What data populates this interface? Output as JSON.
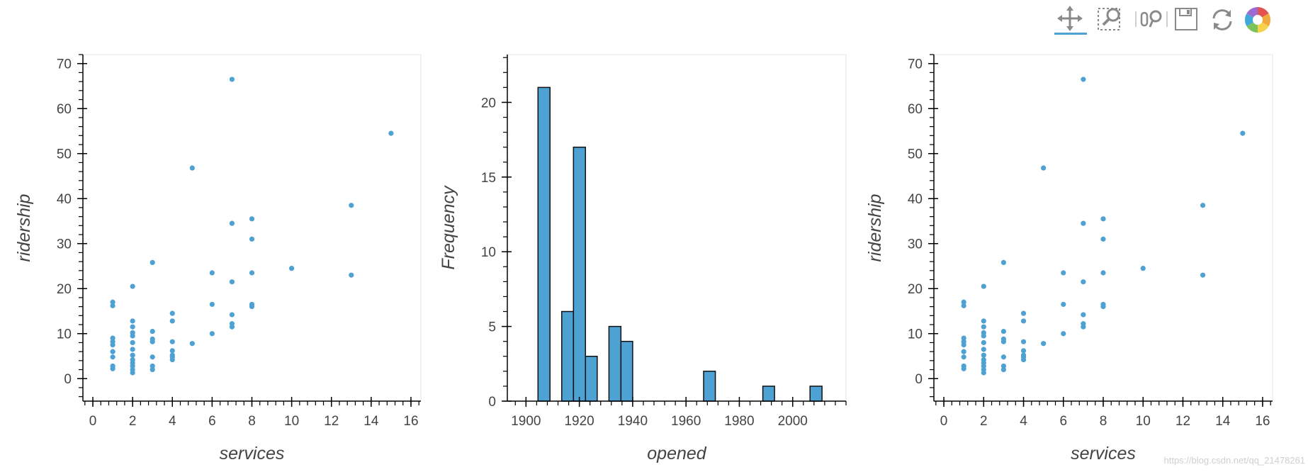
{
  "toolbar": {
    "tools": [
      {
        "name": "pan-tool",
        "icon": "move-icon",
        "active": true
      },
      {
        "name": "box-zoom-tool",
        "icon": "box-zoom-icon",
        "active": false
      },
      {
        "name": "wheel-zoom-tool",
        "icon": "wheel-zoom-icon",
        "active": false
      },
      {
        "name": "save-tool",
        "icon": "save-icon",
        "active": false
      },
      {
        "name": "reset-tool",
        "icon": "reset-icon",
        "active": false
      },
      {
        "name": "bokeh-logo",
        "icon": "bokeh-logo-icon",
        "active": false
      }
    ],
    "active_color": "#4ea1d3"
  },
  "watermark": "https://blog.csdn.net/qq_21478261",
  "chart_data": [
    {
      "type": "scatter",
      "title": "",
      "xlabel": "services",
      "ylabel": "ridership",
      "xlim": [
        -0.5,
        16.5
      ],
      "ylim": [
        -5,
        72
      ],
      "xticks": [
        0,
        2,
        4,
        6,
        8,
        10,
        12,
        14,
        16
      ],
      "yticks": [
        0,
        10,
        20,
        30,
        40,
        50,
        60,
        70
      ],
      "color": "#4ea1d3",
      "points": [
        [
          1,
          17
        ],
        [
          1,
          16.2
        ],
        [
          1,
          9
        ],
        [
          1,
          8.2
        ],
        [
          1,
          7.5
        ],
        [
          1,
          6
        ],
        [
          1,
          4.8
        ],
        [
          1,
          2.8
        ],
        [
          1,
          2.2
        ],
        [
          2,
          20.5
        ],
        [
          2,
          12.8
        ],
        [
          2,
          11.5
        ],
        [
          2,
          10.2
        ],
        [
          2,
          9.5
        ],
        [
          2,
          8
        ],
        [
          2,
          6.5
        ],
        [
          2,
          5.2
        ],
        [
          2,
          4.2
        ],
        [
          2,
          3.5
        ],
        [
          2,
          2.8
        ],
        [
          2,
          2
        ],
        [
          2,
          1.3
        ],
        [
          3,
          25.8
        ],
        [
          3,
          10.5
        ],
        [
          3,
          8.8
        ],
        [
          3,
          8.2
        ],
        [
          3,
          4.8
        ],
        [
          3,
          2.8
        ],
        [
          3,
          2
        ],
        [
          4,
          14.5
        ],
        [
          4,
          12.8
        ],
        [
          4,
          8.2
        ],
        [
          4,
          6.2
        ],
        [
          4,
          5.2
        ],
        [
          4,
          4.8
        ],
        [
          4,
          4.2
        ],
        [
          5,
          46.8
        ],
        [
          5,
          7.8
        ],
        [
          6,
          23.5
        ],
        [
          6,
          16.5
        ],
        [
          6,
          10
        ],
        [
          7,
          66.5
        ],
        [
          7,
          34.5
        ],
        [
          7,
          21.5
        ],
        [
          7,
          14.2
        ],
        [
          7,
          12.2
        ],
        [
          7,
          11.5
        ],
        [
          8,
          35.5
        ],
        [
          8,
          31
        ],
        [
          8,
          23.5
        ],
        [
          8,
          16.5
        ],
        [
          8,
          16
        ],
        [
          10,
          24.5
        ],
        [
          13,
          38.5
        ],
        [
          13,
          23
        ],
        [
          15,
          54.5
        ]
      ]
    },
    {
      "type": "bar",
      "title": "",
      "xlabel": "opened",
      "ylabel": "Frequency",
      "xlim": [
        1893,
        2020
      ],
      "ylim": [
        0,
        23.2
      ],
      "xticks": [
        1900,
        1920,
        1940,
        1960,
        1980,
        2000
      ],
      "yticks": [
        0,
        5,
        10,
        15,
        20
      ],
      "bar_color": "#4ea1d3",
      "bins": [
        {
          "start": 1904.5,
          "end": 1909,
          "value": 21
        },
        {
          "start": 1913.4,
          "end": 1917.8,
          "value": 6
        },
        {
          "start": 1917.8,
          "end": 1922.3,
          "value": 17
        },
        {
          "start": 1922.3,
          "end": 1926.7,
          "value": 3
        },
        {
          "start": 1931.1,
          "end": 1935.6,
          "value": 5
        },
        {
          "start": 1935.6,
          "end": 1940,
          "value": 4
        },
        {
          "start": 1966.6,
          "end": 1971,
          "value": 2
        },
        {
          "start": 1988.8,
          "end": 1993.2,
          "value": 1
        },
        {
          "start": 2006.5,
          "end": 2011,
          "value": 1
        }
      ]
    },
    {
      "type": "scatter",
      "title": "",
      "xlabel": "services",
      "ylabel": "ridership",
      "xlim": [
        -0.5,
        16.5
      ],
      "ylim": [
        -5,
        72
      ],
      "xticks": [
        0,
        2,
        4,
        6,
        8,
        10,
        12,
        14,
        16
      ],
      "yticks": [
        0,
        10,
        20,
        30,
        40,
        50,
        60,
        70
      ],
      "color": "#4ea1d3",
      "points": [
        [
          1,
          17
        ],
        [
          1,
          16.2
        ],
        [
          1,
          9
        ],
        [
          1,
          8.2
        ],
        [
          1,
          7.5
        ],
        [
          1,
          6
        ],
        [
          1,
          4.8
        ],
        [
          1,
          2.8
        ],
        [
          1,
          2.2
        ],
        [
          2,
          20.5
        ],
        [
          2,
          12.8
        ],
        [
          2,
          11.5
        ],
        [
          2,
          10.2
        ],
        [
          2,
          9.5
        ],
        [
          2,
          8
        ],
        [
          2,
          6.5
        ],
        [
          2,
          5.2
        ],
        [
          2,
          4.2
        ],
        [
          2,
          3.5
        ],
        [
          2,
          2.8
        ],
        [
          2,
          2
        ],
        [
          2,
          1.3
        ],
        [
          3,
          25.8
        ],
        [
          3,
          10.5
        ],
        [
          3,
          8.8
        ],
        [
          3,
          8.2
        ],
        [
          3,
          4.8
        ],
        [
          3,
          2.8
        ],
        [
          3,
          2
        ],
        [
          4,
          14.5
        ],
        [
          4,
          12.8
        ],
        [
          4,
          8.2
        ],
        [
          4,
          6.2
        ],
        [
          4,
          5.2
        ],
        [
          4,
          4.8
        ],
        [
          4,
          4.2
        ],
        [
          5,
          46.8
        ],
        [
          5,
          7.8
        ],
        [
          6,
          23.5
        ],
        [
          6,
          16.5
        ],
        [
          6,
          10
        ],
        [
          7,
          66.5
        ],
        [
          7,
          34.5
        ],
        [
          7,
          21.5
        ],
        [
          7,
          14.2
        ],
        [
          7,
          12.2
        ],
        [
          7,
          11.5
        ],
        [
          8,
          35.5
        ],
        [
          8,
          31
        ],
        [
          8,
          23.5
        ],
        [
          8,
          16.5
        ],
        [
          8,
          16
        ],
        [
          10,
          24.5
        ],
        [
          13,
          38.5
        ],
        [
          13,
          23
        ],
        [
          15,
          54.5
        ]
      ]
    }
  ]
}
